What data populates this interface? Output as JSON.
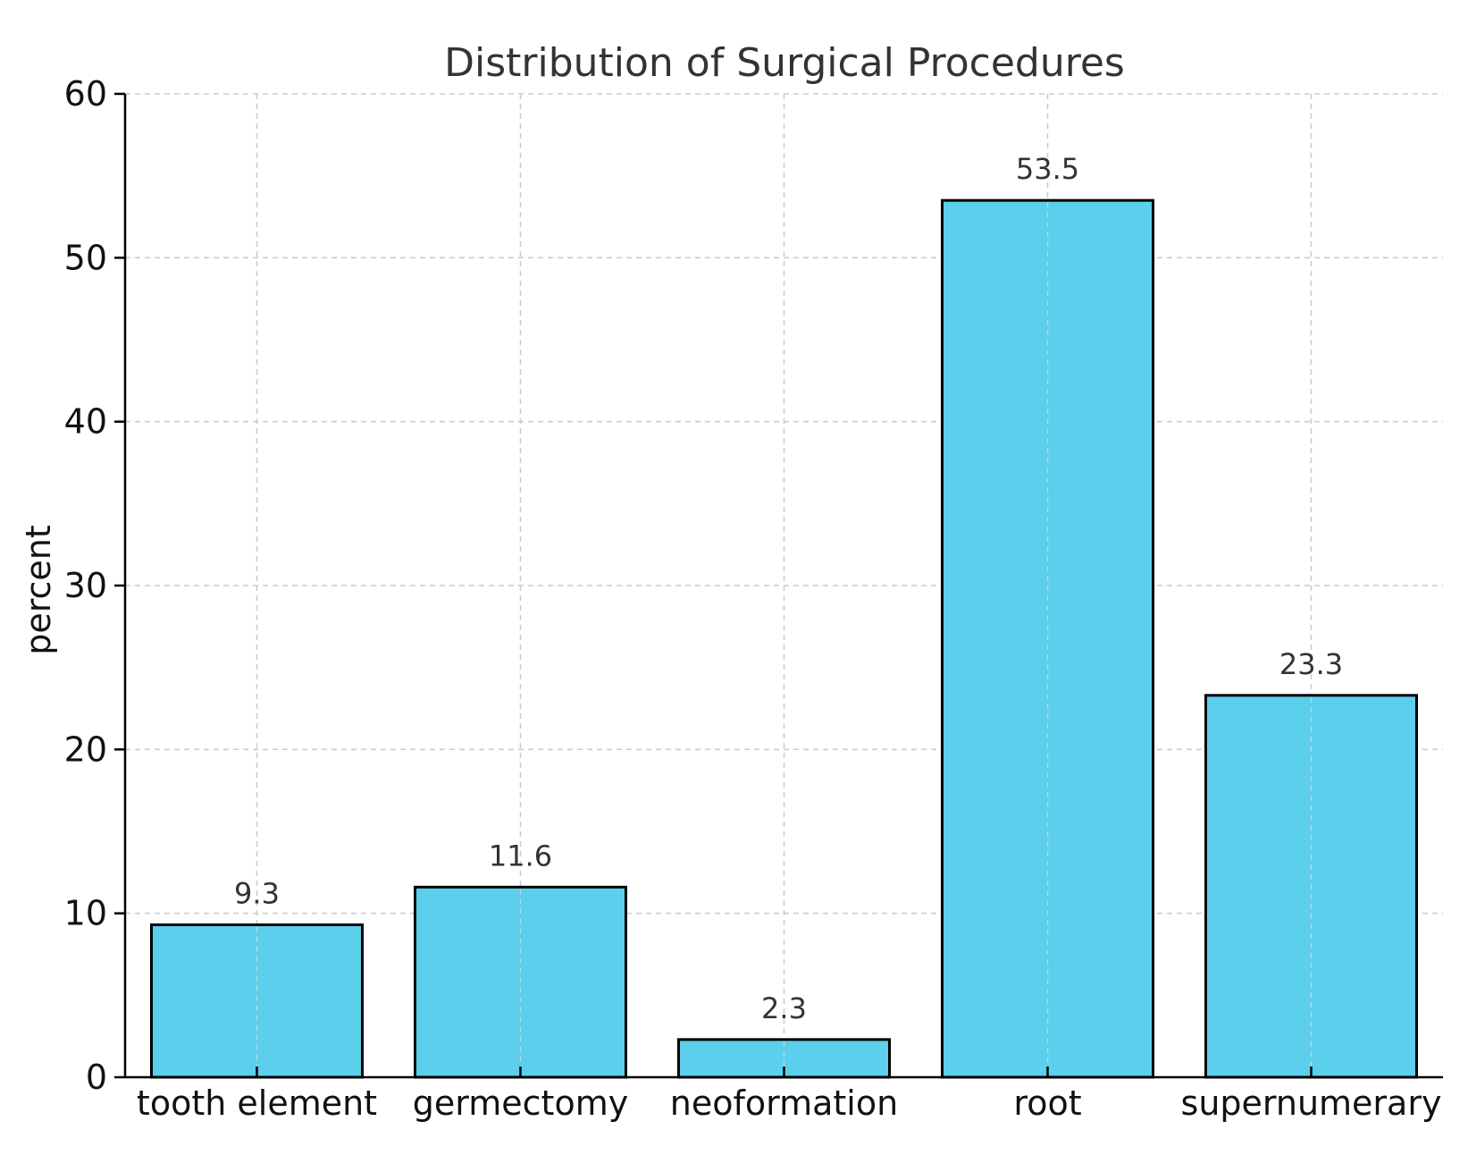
{
  "chart_data": {
    "type": "bar",
    "title": "Distribution of Surgical Procedures",
    "xlabel": "",
    "ylabel": "percent",
    "categories": [
      "tooth element",
      "germectomy",
      "neoformation",
      "root",
      "supernumerary"
    ],
    "values": [
      9.3,
      11.6,
      2.3,
      53.5,
      23.3
    ],
    "data_labels": [
      "9.3",
      "11.6",
      "2.3",
      "53.5",
      "23.3"
    ],
    "ylim": [
      0,
      60
    ],
    "yticks": [
      0,
      10,
      20,
      30,
      40,
      50,
      60
    ],
    "ytick_labels": [
      "0",
      "10",
      "20",
      "30",
      "40",
      "50",
      "60"
    ],
    "grid": true,
    "bar_color": "#5bcfec",
    "bar_edge_color": "#000000"
  }
}
